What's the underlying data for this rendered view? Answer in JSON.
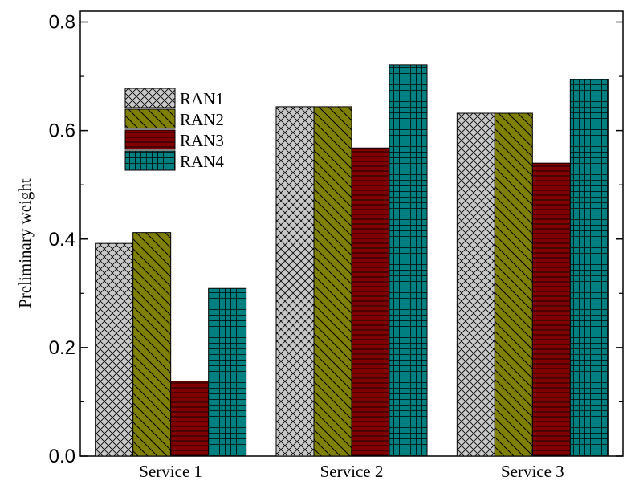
{
  "chart_data": {
    "type": "bar",
    "categories": [
      "Service 1",
      "Service 2",
      "Service 3"
    ],
    "series": [
      {
        "name": "RAN1",
        "values": [
          0.392,
          0.644,
          0.632
        ],
        "color": "#c8c8c8",
        "pattern": "crosshatch"
      },
      {
        "name": "RAN2",
        "values": [
          0.412,
          0.644,
          0.632
        ],
        "color": "#808000",
        "pattern": "diagonal"
      },
      {
        "name": "RAN3",
        "values": [
          0.138,
          0.568,
          0.54
        ],
        "color": "#800000",
        "pattern": "horizontal"
      },
      {
        "name": "RAN4",
        "values": [
          0.309,
          0.721,
          0.694
        ],
        "color": "#008080",
        "pattern": "grid"
      }
    ],
    "title": "",
    "xlabel": "",
    "ylabel": "Preliminary weight",
    "ylim": [
      0,
      0.82
    ],
    "yticks": [
      "0.0",
      "0.2",
      "0.4",
      "0.6",
      "0.8"
    ],
    "legend_position": "upper-left",
    "grid": false
  }
}
